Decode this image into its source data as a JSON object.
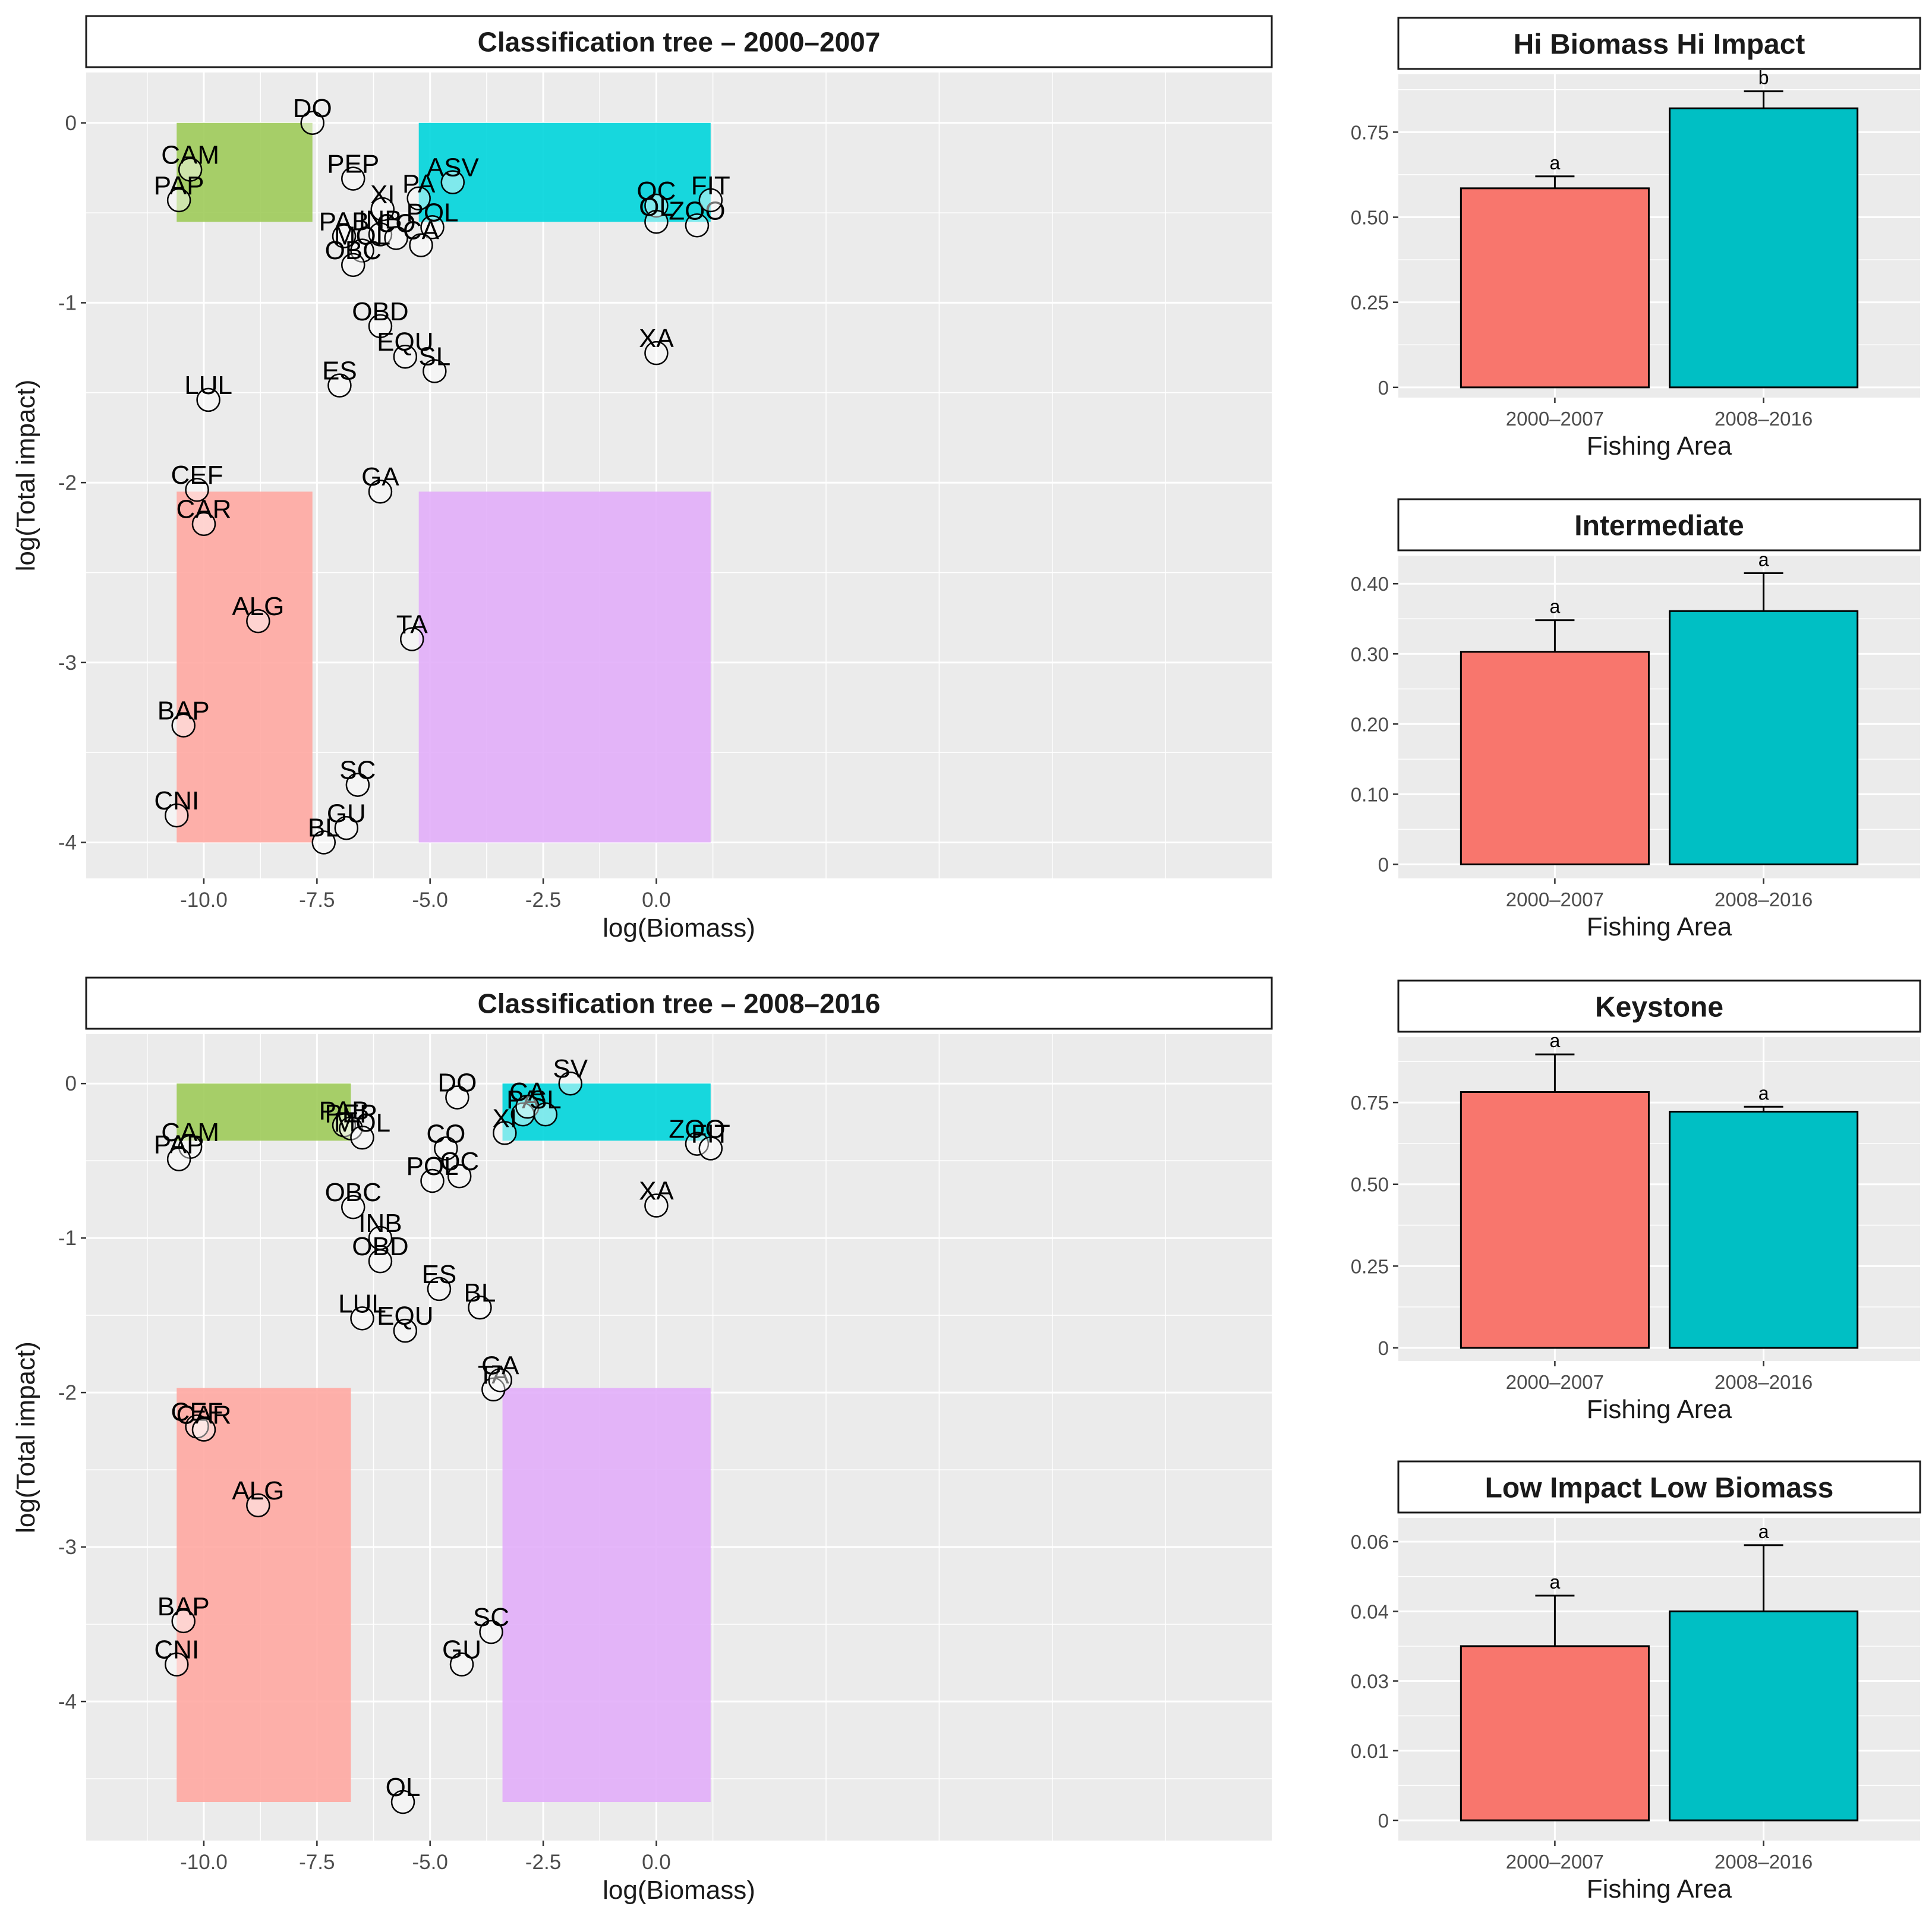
{
  "colors": {
    "panel_bg": "#EBEBEB",
    "grid": "#FFFFFF",
    "period1": "#F8766D",
    "period2": "#00BFC4",
    "hi_hi_region": "#00D5DB",
    "keystone_region": "#9ECB5A",
    "low_low_region": "#FFA8A2",
    "intermediate_region": "#E2AEFA",
    "text": "#1A1A1A",
    "axis_text": "#4D4D4D"
  },
  "chart_data": [
    {
      "type": "scatter",
      "title": "Classification tree – 2000–2007",
      "xlabel": "log(Biomass)",
      "ylabel": "log(Total impact)",
      "xlim": [
        -12.6,
        13.6
      ],
      "ylim": [
        -4.2,
        0.28
      ],
      "xticks": [
        -10,
        -7.5,
        -5,
        -2.5,
        0
      ],
      "xtick_labels": [
        "-10.0",
        "-7.5",
        "-5.0",
        "-2.5",
        "0.0"
      ],
      "yticks": [
        0,
        -1,
        -2,
        -3,
        -4
      ],
      "ytick_labels": [
        "0",
        "-1",
        "-2",
        "-3",
        "-4"
      ],
      "regions": [
        {
          "name": "keystone",
          "x": [
            -10.6,
            -7.6
          ],
          "y": [
            -0.55,
            0
          ]
        },
        {
          "name": "hi-biomass-hi-impact",
          "x": [
            -5.25,
            1.2
          ],
          "y": [
            -0.55,
            0
          ]
        },
        {
          "name": "low-impact-low-biomass",
          "x": [
            -10.6,
            -7.6
          ],
          "y": [
            -4.0,
            -2.05
          ]
        },
        {
          "name": "intermediate",
          "x": [
            -5.25,
            1.2
          ],
          "y": [
            -4.0,
            -2.05
          ]
        }
      ],
      "points": [
        {
          "label": "DO",
          "x": -7.6,
          "y": 0.0
        },
        {
          "label": "CAM",
          "x": -10.3,
          "y": -0.26
        },
        {
          "label": "PAP",
          "x": -10.55,
          "y": -0.43
        },
        {
          "label": "PEP",
          "x": -6.7,
          "y": -0.31
        },
        {
          "label": "ASV",
          "x": -4.5,
          "y": -0.33
        },
        {
          "label": "PA",
          "x": -5.25,
          "y": -0.42
        },
        {
          "label": "XI",
          "x": -6.05,
          "y": -0.48
        },
        {
          "label": "POL",
          "x": -4.95,
          "y": -0.58
        },
        {
          "label": "PAB",
          "x": -6.9,
          "y": -0.63
        },
        {
          "label": "INB",
          "x": -6.1,
          "y": -0.62
        },
        {
          "label": "CO",
          "x": -5.75,
          "y": -0.64
        },
        {
          "label": "CA",
          "x": -5.2,
          "y": -0.68
        },
        {
          "label": "MOL",
          "x": -6.5,
          "y": -0.71
        },
        {
          "label": "OBC",
          "x": -6.7,
          "y": -0.79
        },
        {
          "label": "OC",
          "x": 0.0,
          "y": -0.46
        },
        {
          "label": "OL",
          "x": 0.0,
          "y": -0.55
        },
        {
          "label": "ZOO",
          "x": 0.9,
          "y": -0.57
        },
        {
          "label": "FIT",
          "x": 1.2,
          "y": -0.43
        },
        {
          "label": "OBD",
          "x": -6.1,
          "y": -1.13
        },
        {
          "label": "EQU",
          "x": -5.55,
          "y": -1.3
        },
        {
          "label": "SL",
          "x": -4.9,
          "y": -1.38
        },
        {
          "label": "XA",
          "x": 0.0,
          "y": -1.28
        },
        {
          "label": "ES",
          "x": -7.0,
          "y": -1.46
        },
        {
          "label": "LUL",
          "x": -9.9,
          "y": -1.54
        },
        {
          "label": "CEF",
          "x": -10.15,
          "y": -2.04
        },
        {
          "label": "CAR",
          "x": -10.0,
          "y": -2.23
        },
        {
          "label": "GA",
          "x": -6.1,
          "y": -2.05
        },
        {
          "label": "ALG",
          "x": -8.8,
          "y": -2.77
        },
        {
          "label": "TA",
          "x": -5.4,
          "y": -2.87
        },
        {
          "label": "BAP",
          "x": -10.45,
          "y": -3.35
        },
        {
          "label": "SC",
          "x": -6.6,
          "y": -3.68
        },
        {
          "label": "CNI",
          "x": -10.6,
          "y": -3.85
        },
        {
          "label": "GU",
          "x": -6.85,
          "y": -3.92
        },
        {
          "label": "BL",
          "x": -7.35,
          "y": -4.0
        }
      ]
    },
    {
      "type": "scatter",
      "title": "Classification tree – 2008–2016",
      "xlabel": "log(Biomass)",
      "ylabel": "log(Total impact)",
      "xlim": [
        -12.6,
        13.6
      ],
      "ylim": [
        -4.9,
        0.32
      ],
      "xticks": [
        -10,
        -7.5,
        -5,
        -2.5,
        0
      ],
      "xtick_labels": [
        "-10.0",
        "-7.5",
        "-5.0",
        "-2.5",
        "0.0"
      ],
      "yticks": [
        0,
        -1,
        -2,
        -3,
        -4
      ],
      "ytick_labels": [
        "0",
        "-1",
        "-2",
        "-3",
        "-4"
      ],
      "regions": [
        {
          "name": "keystone",
          "x": [
            -10.6,
            -6.75
          ],
          "y": [
            -0.37,
            0
          ]
        },
        {
          "name": "hi-biomass-hi-impact",
          "x": [
            -3.4,
            1.2
          ],
          "y": [
            -0.37,
            0
          ]
        },
        {
          "name": "low-impact-low-biomass",
          "x": [
            -10.6,
            -6.75
          ],
          "y": [
            -4.65,
            -1.97
          ]
        },
        {
          "name": "intermediate",
          "x": [
            -3.4,
            1.2
          ],
          "y": [
            -4.65,
            -1.97
          ]
        }
      ],
      "points": [
        {
          "label": "SV",
          "x": -1.9,
          "y": 0.0
        },
        {
          "label": "DO",
          "x": -4.4,
          "y": -0.09
        },
        {
          "label": "PA",
          "x": -2.95,
          "y": -0.2
        },
        {
          "label": "CA",
          "x": -2.85,
          "y": -0.15
        },
        {
          "label": "SL",
          "x": -2.45,
          "y": -0.2
        },
        {
          "label": "XI",
          "x": -3.35,
          "y": -0.32
        },
        {
          "label": "ZOO",
          "x": 0.9,
          "y": -0.39
        },
        {
          "label": "FIT",
          "x": 1.2,
          "y": -0.42
        },
        {
          "label": "PAB",
          "x": -6.9,
          "y": -0.27
        },
        {
          "label": "PEP",
          "x": -6.75,
          "y": -0.29
        },
        {
          "label": "MOL",
          "x": -6.5,
          "y": -0.35
        },
        {
          "label": "CAM",
          "x": -10.3,
          "y": -0.41
        },
        {
          "label": "PAP",
          "x": -10.55,
          "y": -0.49
        },
        {
          "label": "CO",
          "x": -4.65,
          "y": -0.42
        },
        {
          "label": "OC",
          "x": -4.35,
          "y": -0.6
        },
        {
          "label": "POL",
          "x": -4.95,
          "y": -0.63
        },
        {
          "label": "OBC",
          "x": -6.7,
          "y": -0.8
        },
        {
          "label": "XA",
          "x": 0.0,
          "y": -0.79
        },
        {
          "label": "INB",
          "x": -6.1,
          "y": -1.0
        },
        {
          "label": "OBD",
          "x": -6.1,
          "y": -1.15
        },
        {
          "label": "ES",
          "x": -4.8,
          "y": -1.33
        },
        {
          "label": "BL",
          "x": -3.9,
          "y": -1.45
        },
        {
          "label": "LUL",
          "x": -6.5,
          "y": -1.52
        },
        {
          "label": "EQU",
          "x": -5.55,
          "y": -1.6
        },
        {
          "label": "TA",
          "x": -3.6,
          "y": -1.98
        },
        {
          "label": "GA",
          "x": -3.45,
          "y": -1.92
        },
        {
          "label": "CEF",
          "x": -10.15,
          "y": -2.22
        },
        {
          "label": "CAR",
          "x": -10.0,
          "y": -2.24
        },
        {
          "label": "ALG",
          "x": -8.8,
          "y": -2.73
        },
        {
          "label": "BAP",
          "x": -10.45,
          "y": -3.48
        },
        {
          "label": "SC",
          "x": -3.65,
          "y": -3.55
        },
        {
          "label": "CNI",
          "x": -10.6,
          "y": -3.76
        },
        {
          "label": "GU",
          "x": -4.3,
          "y": -3.76
        },
        {
          "label": "OL",
          "x": -5.6,
          "y": -4.65
        }
      ]
    },
    {
      "type": "bar",
      "title": "Hi Biomass Hi Impact",
      "xlabel": "Fishing Area",
      "categories": [
        "2000–2007",
        "2008–2016"
      ],
      "values": [
        0.585,
        0.82
      ],
      "errors": [
        0.035,
        0.05
      ],
      "letters": [
        "a",
        "b"
      ],
      "ylim": [
        -0.03,
        0.92
      ],
      "yticks": [
        0,
        0.25,
        0.5,
        0.75
      ],
      "ytick_labels": [
        "0",
        "0.25",
        "0.50",
        "0.75"
      ]
    },
    {
      "type": "bar",
      "title": "Intermediate",
      "xlabel": "Fishing Area",
      "categories": [
        "2000–2007",
        "2008–2016"
      ],
      "values": [
        0.303,
        0.361
      ],
      "errors": [
        0.045,
        0.054
      ],
      "letters": [
        "a",
        "a"
      ],
      "ylim": [
        -0.02,
        0.44
      ],
      "yticks": [
        0,
        0.1,
        0.2,
        0.3,
        0.4
      ],
      "ytick_labels": [
        "0",
        "0.10",
        "0.20",
        "0.30",
        "0.40"
      ]
    },
    {
      "type": "bar",
      "title": "Keystone",
      "xlabel": "Fishing Area",
      "categories": [
        "2000–2007",
        "2008–2016"
      ],
      "values": [
        0.782,
        0.722
      ],
      "errors": [
        0.115,
        0.015
      ],
      "letters": [
        "a",
        "a"
      ],
      "ylim": [
        -0.04,
        0.95
      ],
      "yticks": [
        0,
        0.25,
        0.5,
        0.75
      ],
      "ytick_labels": [
        "0",
        "0.25",
        "0.50",
        "0.75"
      ]
    },
    {
      "type": "bar",
      "title": "Low Impact Low Biomass",
      "xlabel": "Fishing Area",
      "categories": [
        "2000–2007",
        "2008–2016"
      ],
      "values": [
        0.035,
        0.04
      ],
      "errors": [
        0.0095,
        0.019
      ],
      "letters": [
        "a",
        "a"
      ],
      "ytick_labels": [
        "0",
        "0.01",
        "0.03",
        "0.04",
        "0.06"
      ]
    }
  ]
}
